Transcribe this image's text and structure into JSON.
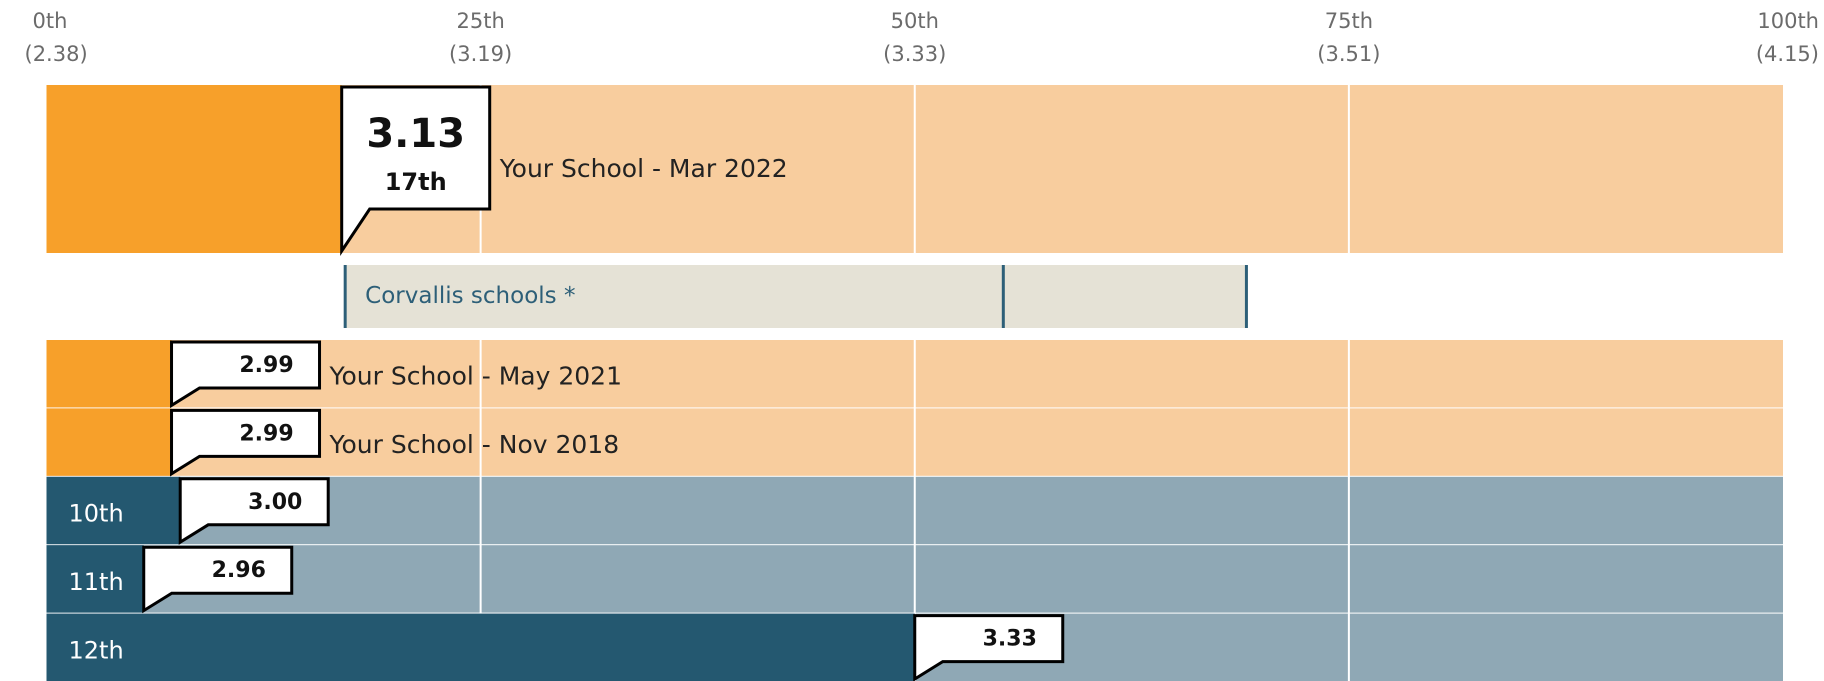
{
  "chart_data": {
    "type": "percentile-bars",
    "xlim": [
      0,
      100
    ],
    "xticks": [
      {
        "value": 0,
        "label": "0th"
      },
      {
        "value": 25,
        "label": "25th"
      },
      {
        "value": 50,
        "label": "50th"
      },
      {
        "value": 75,
        "label": "75th"
      },
      {
        "value": 100,
        "label": "100th"
      }
    ],
    "tick_scores": [
      "(2.38)",
      "(3.19)",
      "(3.33)",
      "(3.51)",
      "(4.15)"
    ],
    "grid": true,
    "colors": {
      "school": "#f7a02a",
      "school_bg": "#f8cd9e",
      "grade": "#245870",
      "grade_bg": "#8fa8b5",
      "range": "#e5e2d6",
      "range_line": "#2d5f78"
    },
    "featured": {
      "name": "Your School - Mar 2022",
      "value": 3.13,
      "percentile": 17,
      "percentile_label": "17th"
    },
    "comparison": {
      "label": "Corvallis schools *",
      "low": 17.2,
      "median": 55.1,
      "high": 69.1
    },
    "rows": [
      {
        "name": "Your School - May 2021",
        "kind": "school",
        "value": 2.99,
        "percentile": 7.2
      },
      {
        "name": "Your School - Nov 2018",
        "kind": "school",
        "value": 2.99,
        "percentile": 7.2
      },
      {
        "name": "10th",
        "kind": "grade",
        "value": 3.0,
        "value_label": "3.00",
        "percentile": 7.7
      },
      {
        "name": "11th",
        "kind": "grade",
        "value": 2.96,
        "percentile": 5.6
      },
      {
        "name": "12th",
        "kind": "grade",
        "value": 3.33,
        "percentile": 50
      }
    ]
  }
}
